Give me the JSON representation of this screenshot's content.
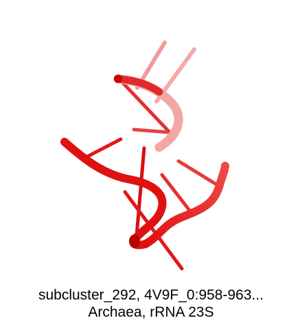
{
  "caption": {
    "line1": "subcluster_292, 4V9F_0:958-963...",
    "line2": "Archaea, rRNA 23S"
  },
  "colors": {
    "background": "#ffffff",
    "strand_front": "#e01010",
    "strand_back": "#f06a6a",
    "strand_faded": "#f7b0b0",
    "text": "#000000"
  }
}
